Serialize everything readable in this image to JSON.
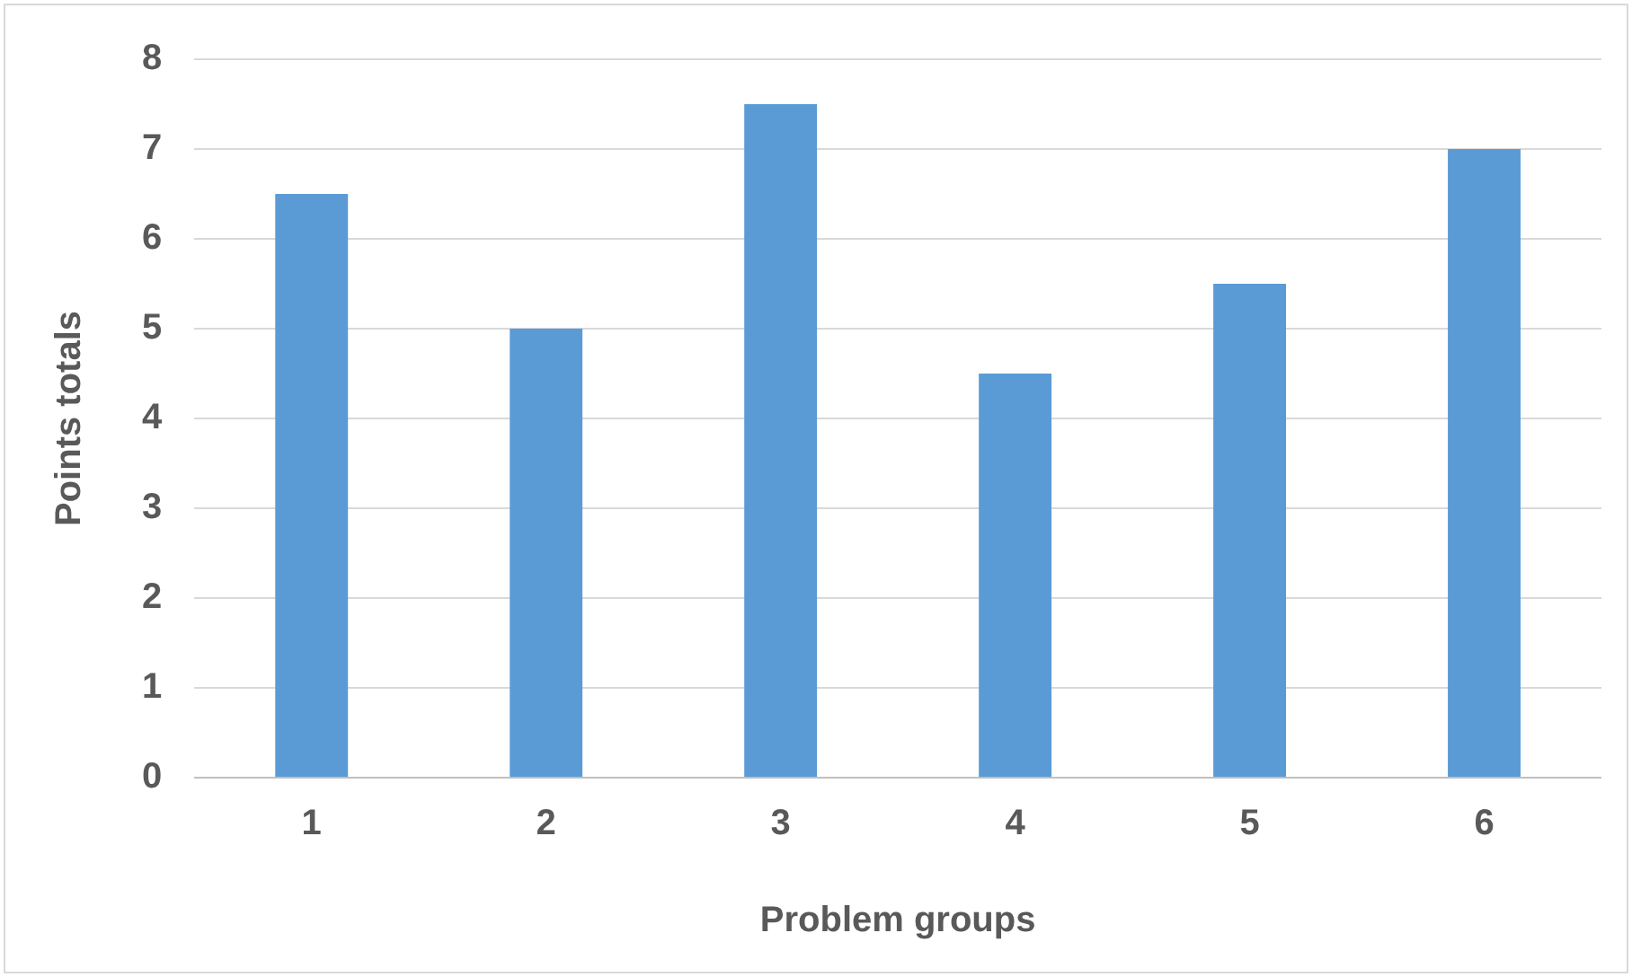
{
  "chart_data": {
    "type": "bar",
    "xlabel": "Problem groups",
    "ylabel": "Points totals",
    "categories": [
      "1",
      "2",
      "3",
      "4",
      "5",
      "6"
    ],
    "values": [
      6.5,
      5,
      7.5,
      4.5,
      5.5,
      7
    ],
    "color": "#5b9bd5",
    "ylim": [
      0,
      8
    ],
    "yticks": [
      0,
      1,
      2,
      3,
      4,
      5,
      6,
      7,
      8
    ],
    "grid": "y",
    "legend": false
  }
}
